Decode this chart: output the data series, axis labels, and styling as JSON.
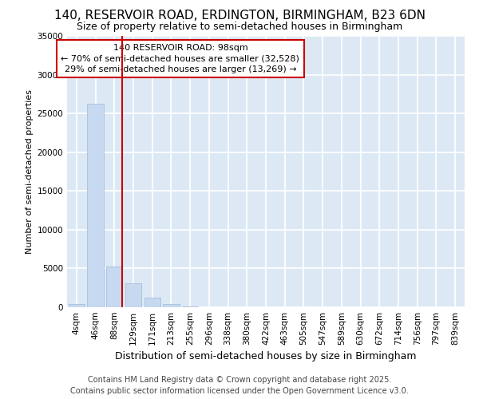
{
  "title_line1": "140, RESERVOIR ROAD, ERDINGTON, BIRMINGHAM, B23 6DN",
  "title_line2": "Size of property relative to semi-detached houses in Birmingham",
  "xlabel": "Distribution of semi-detached houses by size in Birmingham",
  "ylabel": "Number of semi-detached properties",
  "footer_line1": "Contains HM Land Registry data © Crown copyright and database right 2025.",
  "footer_line2": "Contains public sector information licensed under the Open Government Licence v3.0.",
  "annotation_line1": "140 RESERVOIR ROAD: 98sqm",
  "annotation_line2": "← 70% of semi-detached houses are smaller (32,528)",
  "annotation_line3": "29% of semi-detached houses are larger (13,269) →",
  "categories": [
    "4sqm",
    "46sqm",
    "88sqm",
    "129sqm",
    "171sqm",
    "213sqm",
    "255sqm",
    "296sqm",
    "338sqm",
    "380sqm",
    "422sqm",
    "463sqm",
    "505sqm",
    "547sqm",
    "589sqm",
    "630sqm",
    "672sqm",
    "714sqm",
    "756sqm",
    "797sqm",
    "839sqm"
  ],
  "values": [
    380,
    26200,
    5200,
    3100,
    1200,
    400,
    100,
    30,
    15,
    10,
    8,
    5,
    4,
    3,
    2,
    2,
    1,
    1,
    1,
    1,
    1
  ],
  "bar_color": "#c6d9f0",
  "bar_edge_color": "#a0b8d8",
  "marker_color": "#cc0000",
  "ylim": [
    0,
    35000
  ],
  "yticks": [
    0,
    5000,
    10000,
    15000,
    20000,
    25000,
    30000,
    35000
  ],
  "bg_color": "#dce9f5",
  "grid_color": "#ffffff",
  "annotation_box_color": "#ffffff",
  "annotation_box_edge": "#cc0000",
  "title_fontsize": 11,
  "subtitle_fontsize": 9,
  "footer_fontsize": 7,
  "xlabel_fontsize": 9,
  "ylabel_fontsize": 8,
  "tick_fontsize": 7.5,
  "ann_fontsize": 8
}
